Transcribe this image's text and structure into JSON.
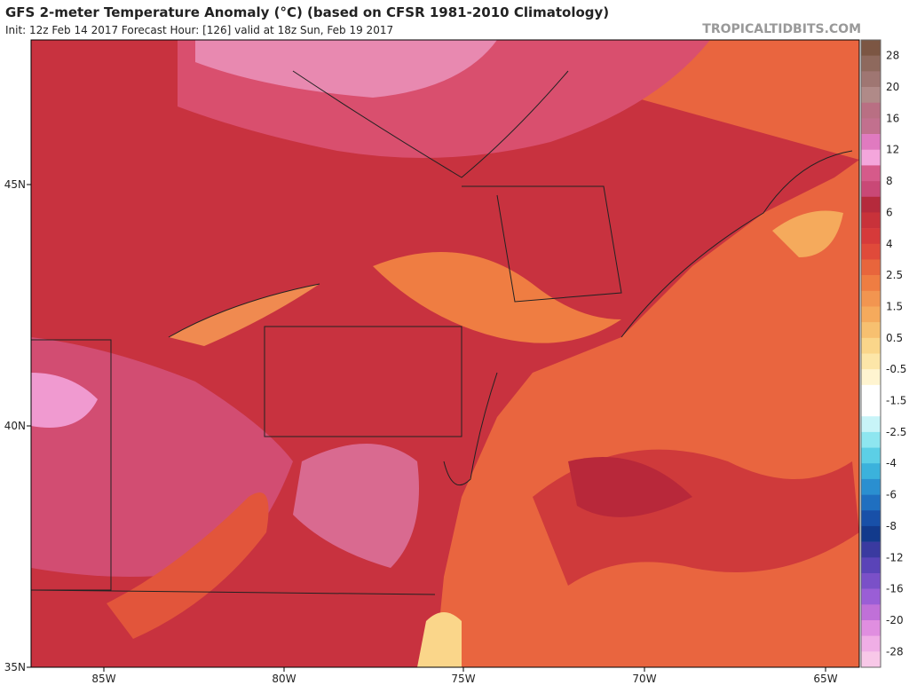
{
  "header": {
    "title": "GFS 2-meter Temperature Anomaly (°C) (based on CFSR 1981-2010 Climatology)",
    "subtitle": "Init: 12z Feb 14 2017   Forecast Hour: [126]   valid at 18z Sun, Feb 19 2017",
    "site": "TROPICALTIDBITS.COM"
  },
  "map": {
    "lat_labels": [
      "45N",
      "40N",
      "35N"
    ],
    "lon_labels": [
      "85W",
      "80W",
      "75W",
      "70W",
      "65W"
    ]
  },
  "colorbar": {
    "labels": [
      "28",
      "20",
      "16",
      "12",
      "8",
      "6",
      "4",
      "2.5",
      "1.5",
      "0.5",
      "-0.5",
      "-1.5",
      "-2.5",
      "-4",
      "-6",
      "-8",
      "-12",
      "-16",
      "-20",
      "-28"
    ]
  }
}
